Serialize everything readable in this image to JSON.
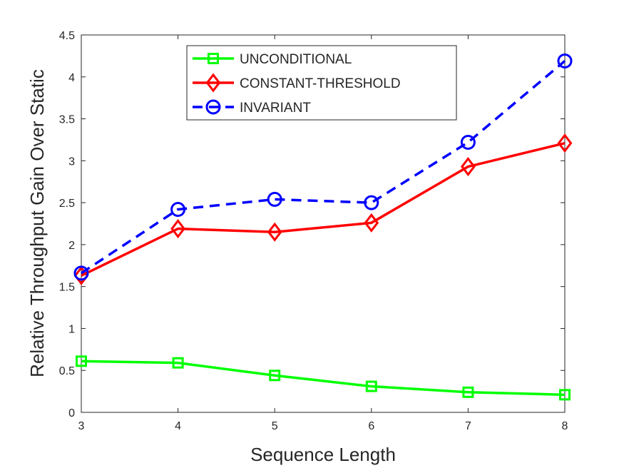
{
  "chart_data": {
    "type": "line",
    "title": "",
    "xlabel": "Sequence Length",
    "ylabel": "Relative Throughput Gain Over Static",
    "x": [
      3,
      4,
      5,
      6,
      7,
      8
    ],
    "xlim": [
      3,
      8
    ],
    "ylim": [
      0,
      4.5
    ],
    "xticks": [
      3,
      4,
      5,
      6,
      7,
      8
    ],
    "yticks": [
      0,
      0.5,
      1,
      1.5,
      2,
      2.5,
      3,
      3.5,
      4,
      4.5
    ],
    "xtick_labels": [
      "3",
      "4",
      "5",
      "6",
      "7",
      "8"
    ],
    "ytick_labels": [
      "0",
      "0.5",
      "1",
      "1.5",
      "2",
      "2.5",
      "3",
      "3.5",
      "4",
      "4.5"
    ],
    "grid": false,
    "legend_position": "top-center",
    "series": [
      {
        "name": "UNCONDITIONAL",
        "values": [
          0.61,
          0.59,
          0.44,
          0.31,
          0.24,
          0.21
        ],
        "color": "#00ff00",
        "marker": "square",
        "line_style": "solid"
      },
      {
        "name": "CONSTANT-THRESHOLD",
        "values": [
          1.63,
          2.19,
          2.15,
          2.26,
          2.93,
          3.21
        ],
        "color": "#ff0000",
        "marker": "diamond",
        "line_style": "solid"
      },
      {
        "name": "INVARIANT",
        "values": [
          1.66,
          2.42,
          2.54,
          2.5,
          3.22,
          4.19
        ],
        "color": "#0000ff",
        "marker": "circle",
        "line_style": "dashed"
      }
    ]
  }
}
